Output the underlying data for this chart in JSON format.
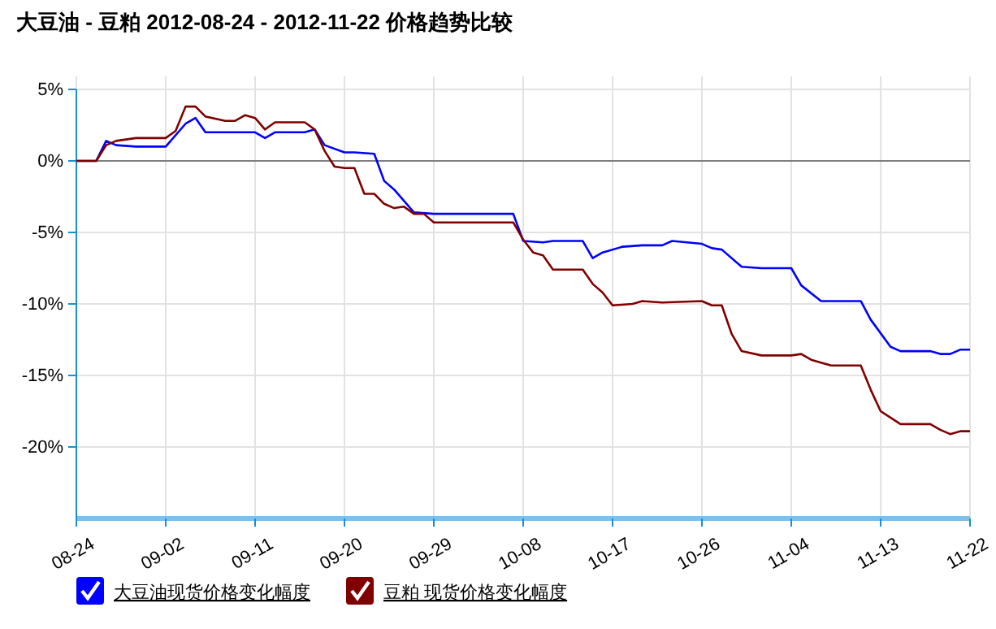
{
  "chart_data": {
    "type": "line",
    "title": "大豆油 - 豆粕 2012-08-24 - 2012-11-22 价格趋势比较",
    "xlim": [
      "2012-08-24",
      "2012-11-22"
    ],
    "xticks": [
      {
        "value": "2012-08-24",
        "label": "08-24"
      },
      {
        "value": "2012-09-02",
        "label": "09-02"
      },
      {
        "value": "2012-09-11",
        "label": "09-11"
      },
      {
        "value": "2012-09-20",
        "label": "09-20"
      },
      {
        "value": "2012-09-29",
        "label": "09-29"
      },
      {
        "value": "2012-10-08",
        "label": "10-08"
      },
      {
        "value": "2012-10-17",
        "label": "10-17"
      },
      {
        "value": "2012-10-26",
        "label": "10-26"
      },
      {
        "value": "2012-11-04",
        "label": "11-04"
      },
      {
        "value": "2012-11-13",
        "label": "11-13"
      },
      {
        "value": "2012-11-22",
        "label": "11-22"
      }
    ],
    "ylim": [
      -25,
      5
    ],
    "yticks": [
      {
        "value": 5,
        "label": "5%"
      },
      {
        "value": 0,
        "label": "0%"
      },
      {
        "value": -5,
        "label": "-5%"
      },
      {
        "value": -10,
        "label": "-10%"
      },
      {
        "value": -15,
        "label": "-15%"
      },
      {
        "value": -20,
        "label": "-20%"
      }
    ],
    "grid": true,
    "legend": "bottom",
    "marker": "none",
    "line_style": "solid",
    "ref_lines": [
      {
        "axis": "y",
        "value": 0,
        "color": "#808080"
      }
    ],
    "series": [
      {
        "name": "大豆油现货价格变化幅度",
        "color": "#0000ff",
        "x": [
          "2012-08-24",
          "2012-08-26",
          "2012-08-27",
          "2012-08-28",
          "2012-08-30",
          "2012-09-02",
          "2012-09-04",
          "2012-09-05",
          "2012-09-06",
          "2012-09-11",
          "2012-09-12",
          "2012-09-13",
          "2012-09-16",
          "2012-09-17",
          "2012-09-18",
          "2012-09-20",
          "2012-09-21",
          "2012-09-23",
          "2012-09-24",
          "2012-09-25",
          "2012-09-27",
          "2012-09-29",
          "2012-10-07",
          "2012-10-08",
          "2012-10-10",
          "2012-10-11",
          "2012-10-14",
          "2012-10-15",
          "2012-10-16",
          "2012-10-18",
          "2012-10-20",
          "2012-10-22",
          "2012-10-23",
          "2012-10-26",
          "2012-10-27",
          "2012-10-28",
          "2012-10-30",
          "2012-11-01",
          "2012-11-04",
          "2012-11-05",
          "2012-11-07",
          "2012-11-11",
          "2012-11-12",
          "2012-11-14",
          "2012-11-15",
          "2012-11-18",
          "2012-11-19",
          "2012-11-20",
          "2012-11-21",
          "2012-11-22"
        ],
        "values": [
          0,
          0,
          1.4,
          1.1,
          1.0,
          1.0,
          2.6,
          3.0,
          2.0,
          2.0,
          1.6,
          2.0,
          2.0,
          2.2,
          1.1,
          0.6,
          0.6,
          0.5,
          -1.4,
          -2.0,
          -3.6,
          -3.7,
          -3.7,
          -5.6,
          -5.7,
          -5.6,
          -5.6,
          -6.8,
          -6.4,
          -6.0,
          -5.9,
          -5.9,
          -5.6,
          -5.8,
          -6.1,
          -6.2,
          -7.4,
          -7.5,
          -7.5,
          -8.7,
          -9.8,
          -9.8,
          -11.1,
          -13.0,
          -13.3,
          -13.3,
          -13.5,
          -13.5,
          -13.2,
          -13.2
        ]
      },
      {
        "name": "豆粕 现货价格变化幅度",
        "color": "#800000",
        "x": [
          "2012-08-24",
          "2012-08-26",
          "2012-08-27",
          "2012-08-28",
          "2012-08-30",
          "2012-09-02",
          "2012-09-03",
          "2012-09-04",
          "2012-09-05",
          "2012-09-06",
          "2012-09-08",
          "2012-09-09",
          "2012-09-10",
          "2012-09-11",
          "2012-09-12",
          "2012-09-13",
          "2012-09-16",
          "2012-09-17",
          "2012-09-18",
          "2012-09-19",
          "2012-09-20",
          "2012-09-21",
          "2012-09-22",
          "2012-09-23",
          "2012-09-24",
          "2012-09-25",
          "2012-09-26",
          "2012-09-27",
          "2012-09-28",
          "2012-09-29",
          "2012-10-07",
          "2012-10-08",
          "2012-10-09",
          "2012-10-10",
          "2012-10-11",
          "2012-10-14",
          "2012-10-15",
          "2012-10-16",
          "2012-10-17",
          "2012-10-19",
          "2012-10-20",
          "2012-10-22",
          "2012-10-26",
          "2012-10-27",
          "2012-10-28",
          "2012-10-29",
          "2012-10-30",
          "2012-11-01",
          "2012-11-04",
          "2012-11-05",
          "2012-11-06",
          "2012-11-08",
          "2012-11-11",
          "2012-11-12",
          "2012-11-13",
          "2012-11-15",
          "2012-11-18",
          "2012-11-19",
          "2012-11-20",
          "2012-11-21",
          "2012-11-22"
        ],
        "values": [
          0,
          0,
          1.1,
          1.4,
          1.6,
          1.6,
          2.1,
          3.8,
          3.8,
          3.1,
          2.8,
          2.8,
          3.2,
          3.0,
          2.2,
          2.7,
          2.7,
          2.2,
          0.7,
          -0.4,
          -0.5,
          -0.5,
          -2.3,
          -2.3,
          -3.0,
          -3.3,
          -3.2,
          -3.7,
          -3.7,
          -4.3,
          -4.3,
          -5.5,
          -6.4,
          -6.6,
          -7.6,
          -7.6,
          -8.6,
          -9.2,
          -10.1,
          -10.0,
          -9.8,
          -9.9,
          -9.8,
          -10.1,
          -10.1,
          -12.1,
          -13.3,
          -13.6,
          -13.6,
          -13.5,
          -13.9,
          -14.3,
          -14.3,
          -16.0,
          -17.5,
          -18.4,
          -18.4,
          -18.8,
          -19.1,
          -18.9,
          -18.9
        ]
      }
    ]
  }
}
